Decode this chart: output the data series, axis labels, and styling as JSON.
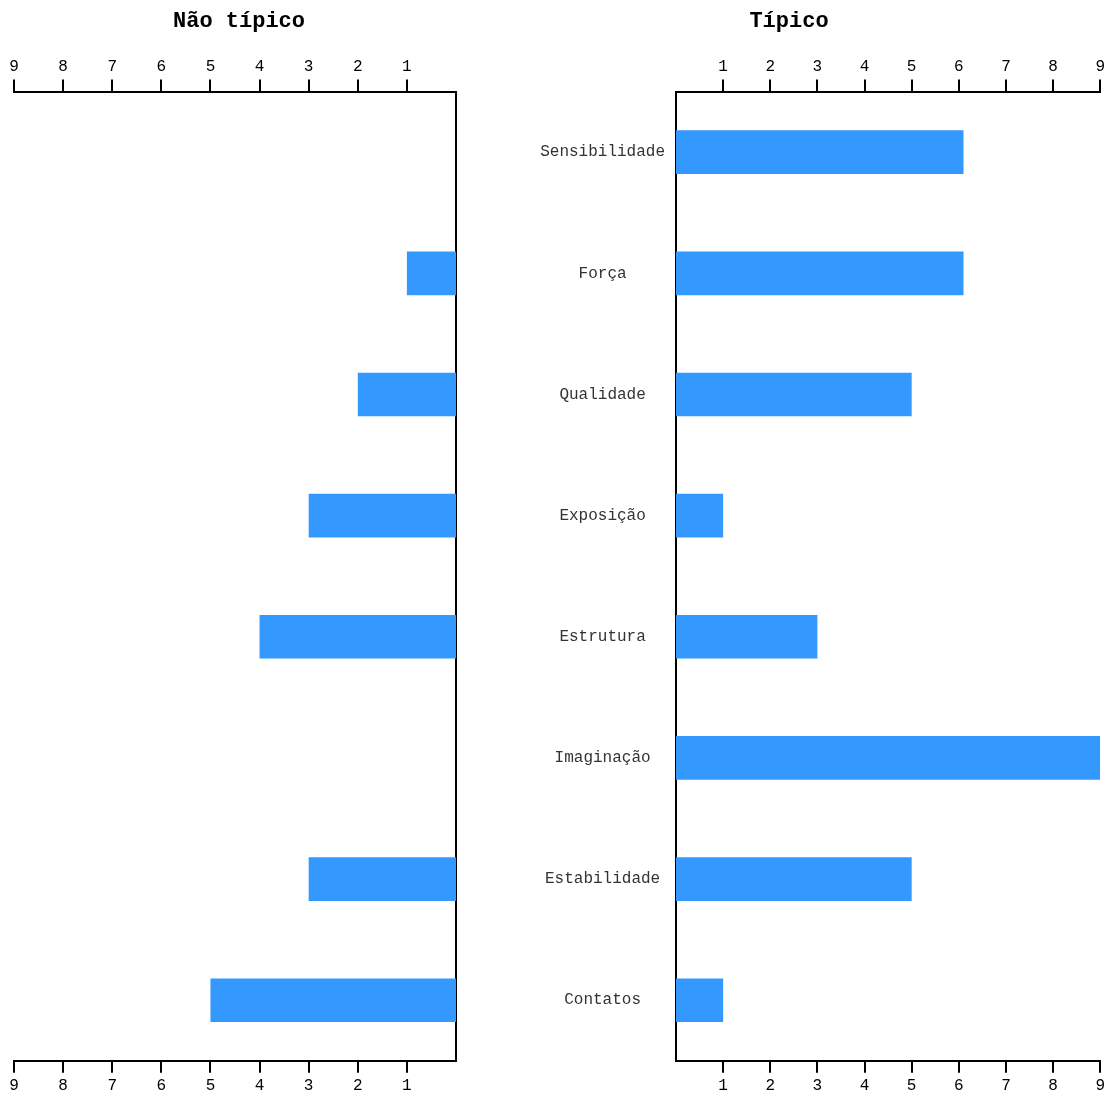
{
  "chart_data": [
    {
      "type": "bar",
      "orientation": "horizontal",
      "title": "Não típico",
      "categories": [
        null,
        null,
        null,
        null,
        null,
        null,
        null,
        null
      ],
      "values": [
        0,
        1,
        2,
        3,
        4,
        0,
        3,
        5
      ],
      "color": "#3399ff",
      "xlim": [
        9,
        0
      ],
      "xticks": [
        1,
        2,
        3,
        4,
        5,
        6,
        7,
        8,
        9
      ],
      "x2lim": [
        9,
        0
      ],
      "x2ticks": [
        1,
        2,
        3,
        4,
        5,
        6,
        7,
        8,
        9
      ],
      "tick_labels": "x"
    },
    {
      "type": "bar",
      "orientation": "horizontal",
      "title": "Típico",
      "categories": [
        "Sensibilidade",
        "Força",
        "Qualidade",
        "Exposição",
        "Estrutura",
        "Imaginação",
        "Estabilidade",
        "Contatos"
      ],
      "values": [
        6.1,
        6.1,
        5,
        1,
        3,
        9,
        5,
        1
      ],
      "color": "#3399ff",
      "xlim": [
        0,
        9
      ],
      "xticks": [
        1,
        2,
        3,
        4,
        5,
        6,
        7,
        8,
        9
      ],
      "x2lim": [
        0,
        9
      ],
      "x2ticks": [
        1,
        2,
        3,
        4,
        5,
        6,
        7,
        8,
        9
      ]
    }
  ]
}
